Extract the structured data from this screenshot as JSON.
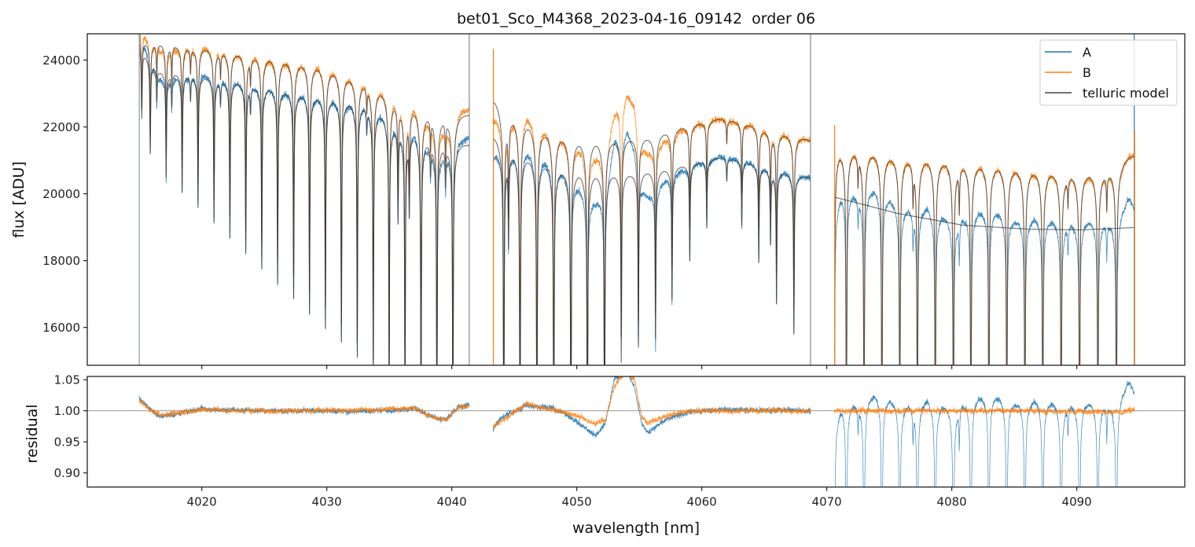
{
  "chart_data": {
    "type": "line",
    "title": "bet01_Sco_M4368_2023-04-16_09142  order 06",
    "xlabel": "wavelength [nm]",
    "xlim": [
      4010.84,
      4098.64
    ],
    "xticks": [
      4020,
      4030,
      4040,
      4050,
      4060,
      4070,
      4080,
      4090
    ],
    "panels": {
      "flux": {
        "ylabel": "flux [ADU]",
        "ylim": [
          14871,
          24786
        ],
        "yticks": [
          16000,
          18000,
          20000,
          22000,
          24000
        ]
      },
      "residual": {
        "ylabel": "residual",
        "ylim": [
          0.8772,
          1.0553
        ],
        "yticks": [
          0.9,
          0.95,
          1.0,
          1.05
        ],
        "yticklabels": [
          "0.90",
          "0.95",
          "1.00",
          "1.05"
        ],
        "reference_line": 1.0
      }
    },
    "legend": {
      "placement": "top-right",
      "entries": [
        {
          "label": "A",
          "color": "#1f77b4"
        },
        {
          "label": "B",
          "color": "#ff7f0e"
        },
        {
          "label": "telluric model",
          "color": "#444444"
        }
      ]
    },
    "segments": [
      {
        "range": [
          4015.0,
          4041.4
        ],
        "lines": [
          [
            4015.2,
            0.08
          ],
          [
            4015.88,
            0.11
          ],
          [
            4017.15,
            0.126
          ],
          [
            4018.43,
            0.142
          ],
          [
            4019.7,
            0.158
          ],
          [
            4020.98,
            0.174
          ],
          [
            4022.25,
            0.19
          ],
          [
            4023.52,
            0.206
          ],
          [
            4024.8,
            0.222
          ],
          [
            4026.07,
            0.238
          ],
          [
            4027.35,
            0.254
          ],
          [
            4028.62,
            0.27
          ],
          [
            4029.89,
            0.286
          ],
          [
            4031.17,
            0.302
          ],
          [
            4032.44,
            0.318
          ],
          [
            4033.72,
            0.334
          ],
          [
            4034.99,
            0.35
          ],
          [
            4036.26,
            0.366
          ],
          [
            4037.54,
            0.382
          ],
          [
            4038.81,
            0.398
          ],
          [
            4040.09,
            0.414
          ],
          [
            4016.4,
            0.04
          ],
          [
            4017.6,
            0.04
          ],
          [
            4019.1,
            0.03
          ],
          [
            4021.5,
            0.03
          ],
          [
            4023.9,
            0.03
          ],
          [
            4033.2,
            0.03
          ],
          [
            4035.7,
            0.12
          ],
          [
            4036.6,
            0.1
          ],
          [
            4038.3,
            0.04
          ],
          [
            4039.5,
            0.05
          ]
        ],
        "continuum_B": [
          [
            4015.0,
            24700
          ],
          [
            4016.6,
            24650
          ],
          [
            4022.9,
            24330
          ],
          [
            4029.2,
            23980
          ],
          [
            4033.0,
            23520
          ],
          [
            4035.5,
            23070
          ],
          [
            4038.0,
            22650
          ],
          [
            4041.4,
            22400
          ]
        ],
        "continuum_A": [
          [
            4015.0,
            24500
          ],
          [
            4016.6,
            23820
          ],
          [
            4022.9,
            23460
          ],
          [
            4029.2,
            23060
          ],
          [
            4033.0,
            22880
          ],
          [
            4035.5,
            22340
          ],
          [
            4038.0,
            21860
          ],
          [
            4041.4,
            21500
          ]
        ],
        "residual_A": [
          [
            4015.0,
            1.02
          ],
          [
            4016.0,
            1.0
          ],
          [
            4016.7,
            0.99
          ],
          [
            4018.0,
            0.995
          ],
          [
            4020.0,
            1.003
          ],
          [
            4025.0,
            1.0
          ],
          [
            4030.0,
            1.0
          ],
          [
            4035.0,
            1.0
          ],
          [
            4037.0,
            1.004
          ],
          [
            4038.5,
            0.99
          ],
          [
            4039.5,
            0.985
          ],
          [
            4040.5,
            1.005
          ],
          [
            4041.4,
            1.01
          ]
        ],
        "residual_B": [
          [
            4015.0,
            1.015
          ],
          [
            4016.0,
            1.0
          ],
          [
            4016.7,
            0.992
          ],
          [
            4018.0,
            0.996
          ],
          [
            4020.0,
            1.002
          ],
          [
            4025.0,
            1.0
          ],
          [
            4030.0,
            1.0
          ],
          [
            4035.0,
            1.002
          ],
          [
            4037.0,
            1.004
          ],
          [
            4038.5,
            0.99
          ],
          [
            4039.5,
            0.985
          ],
          [
            4040.5,
            1.005
          ],
          [
            4041.4,
            1.008
          ]
        ],
        "model_A_has_lines": true
      },
      {
        "range": [
          4043.3,
          4068.7
        ],
        "lines": [
          [
            4044.16,
            0.45
          ],
          [
            4044.54,
            0.12
          ],
          [
            4045.46,
            0.45
          ],
          [
            4046.81,
            0.45
          ],
          [
            4048.16,
            0.45
          ],
          [
            4049.53,
            0.45
          ],
          [
            4050.85,
            0.45
          ],
          [
            4052.22,
            0.45
          ],
          [
            4053.56,
            0.26
          ],
          [
            4054.93,
            0.24
          ],
          [
            4056.3,
            0.23
          ],
          [
            4057.62,
            0.18
          ],
          [
            4059.04,
            0.13
          ],
          [
            4060.4,
            0.09
          ],
          [
            4062.0,
            0.03
          ],
          [
            4063.2,
            0.09
          ],
          [
            4064.56,
            0.13
          ],
          [
            4065.5,
            0.1
          ],
          [
            4065.98,
            0.18
          ],
          [
            4067.37,
            0.22
          ]
        ],
        "continuum_B": [
          [
            4043.3,
            22900
          ],
          [
            4043.5,
            22900
          ],
          [
            4045.0,
            22550
          ],
          [
            4046.1,
            22320
          ],
          [
            4047.3,
            22080
          ],
          [
            4048.8,
            21920
          ],
          [
            4050.3,
            21800
          ],
          [
            4051.7,
            21780
          ],
          [
            4054.3,
            21780
          ],
          [
            4056.0,
            21800
          ],
          [
            4057.6,
            22010
          ],
          [
            4059.3,
            22130
          ],
          [
            4061.4,
            22270
          ],
          [
            4062.9,
            22200
          ],
          [
            4066.1,
            21920
          ],
          [
            4067.7,
            21780
          ],
          [
            4068.7,
            21600
          ]
        ],
        "continuum_A": [
          [
            4043.3,
            21800
          ],
          [
            4043.5,
            21800
          ],
          [
            4045.0,
            21500
          ],
          [
            4046.1,
            21310
          ],
          [
            4048.8,
            20910
          ],
          [
            4051.7,
            20790
          ],
          [
            4054.3,
            20720
          ],
          [
            4057.6,
            20860
          ],
          [
            4061.4,
            21100
          ],
          [
            4062.9,
            21050
          ],
          [
            4066.1,
            20790
          ],
          [
            4067.7,
            20630
          ],
          [
            4068.7,
            20500
          ]
        ],
        "residual_A": [
          [
            4043.3,
            0.97
          ],
          [
            4044.0,
            0.99
          ],
          [
            4046.0,
            1.008
          ],
          [
            4048.0,
            1.005
          ],
          [
            4049.5,
            0.99
          ],
          [
            4050.5,
            0.975
          ],
          [
            4051.5,
            0.96
          ],
          [
            4052.3,
            0.98
          ],
          [
            4053.0,
            1.05
          ],
          [
            4054.0,
            1.065
          ],
          [
            4054.6,
            1.04
          ],
          [
            4055.2,
            0.98
          ],
          [
            4055.7,
            0.965
          ],
          [
            4057.0,
            0.985
          ],
          [
            4059.0,
            0.998
          ],
          [
            4062.0,
            1.002
          ],
          [
            4068.7,
            1.0
          ]
        ],
        "residual_B": [
          [
            4043.3,
            0.975
          ],
          [
            4046.0,
            1.01
          ],
          [
            4049.5,
            0.995
          ],
          [
            4051.5,
            0.98
          ],
          [
            4052.3,
            0.985
          ],
          [
            4053.0,
            1.04
          ],
          [
            4054.0,
            1.065
          ],
          [
            4054.6,
            1.05
          ],
          [
            4055.2,
            0.99
          ],
          [
            4055.7,
            0.98
          ],
          [
            4057.0,
            0.99
          ],
          [
            4059.0,
            1.0
          ],
          [
            4068.7,
            1.0
          ]
        ],
        "model_A_has_lines": true
      },
      {
        "range": [
          4070.6,
          4094.6
        ],
        "lines": [
          [
            4070.6,
            0.45
          ],
          [
            4071.57,
            0.45
          ],
          [
            4072.98,
            0.45
          ],
          [
            4074.41,
            0.45
          ],
          [
            4075.84,
            0.45
          ],
          [
            4077.25,
            0.45
          ],
          [
            4078.68,
            0.45
          ],
          [
            4080.13,
            0.45
          ],
          [
            4081.53,
            0.45
          ],
          [
            4082.97,
            0.45
          ],
          [
            4084.4,
            0.45
          ],
          [
            4085.85,
            0.45
          ],
          [
            4087.28,
            0.45
          ],
          [
            4088.75,
            0.45
          ],
          [
            4090.22,
            0.45
          ],
          [
            4091.69,
            0.45
          ],
          [
            4093.17,
            0.45
          ],
          [
            4072.5,
            0.04
          ],
          [
            4076.9,
            0.05
          ],
          [
            4080.6,
            0.06
          ],
          [
            4089.3,
            0.04
          ],
          [
            4092.4,
            0.05
          ]
        ],
        "continuum_B": [
          [
            4070.6,
            21600
          ],
          [
            4071.1,
            21600
          ],
          [
            4075.7,
            21280
          ],
          [
            4080.9,
            21120
          ],
          [
            4086.2,
            20880
          ],
          [
            4090.4,
            20770
          ],
          [
            4092.6,
            20880
          ],
          [
            4094.2,
            21150
          ],
          [
            4094.6,
            21150
          ]
        ],
        "continuum_A": [
          [
            4070.6,
            19900
          ],
          [
            4075.7,
            19410
          ],
          [
            4080.9,
            19060
          ],
          [
            4086.2,
            18940
          ],
          [
            4090.4,
            18920
          ],
          [
            4094.6,
            18990
          ]
        ],
        "residual_A": [
          [
            4070.6,
            1.0
          ],
          [
            4071.3,
            1.03
          ],
          [
            4072.5,
            1.025
          ],
          [
            4074.0,
            1.04
          ],
          [
            4076.0,
            1.02
          ],
          [
            4078.0,
            1.03
          ],
          [
            4080.0,
            1.015
          ],
          [
            4081.5,
            1.03
          ],
          [
            4083.0,
            1.04
          ],
          [
            4085.0,
            1.025
          ],
          [
            4087.0,
            1.03
          ],
          [
            4089.0,
            1.02
          ],
          [
            4091.0,
            1.025
          ],
          [
            4093.0,
            1.02
          ],
          [
            4094.2,
            1.05
          ],
          [
            4094.6,
            1.03
          ]
        ],
        "residual_B": [
          [
            4070.6,
            1.0
          ],
          [
            4085.0,
            1.0
          ],
          [
            4092.0,
            0.998
          ],
          [
            4093.5,
            0.997
          ],
          [
            4094.3,
            1.004
          ],
          [
            4094.6,
            1.004
          ]
        ],
        "model_A_has_lines": false
      }
    ],
    "edge_lines": [
      {
        "wl": 4015.0,
        "color": "#8a9aa5"
      },
      {
        "wl": 4041.4,
        "color": "#8a8a8a"
      },
      {
        "wl": 4068.7,
        "color": "#8a8a8a"
      },
      {
        "wl": 4094.6,
        "color": "#1f77b4"
      }
    ],
    "edge_spikes": [
      {
        "wl": 4043.3,
        "flux_top": 24330,
        "color": "#ff7f0e"
      },
      {
        "wl": 4070.6,
        "flux_top": 22060,
        "color": "#ff7f0e"
      },
      {
        "wl": 4094.6,
        "flux_top": 21900,
        "color": "#ff7f0e"
      }
    ]
  }
}
